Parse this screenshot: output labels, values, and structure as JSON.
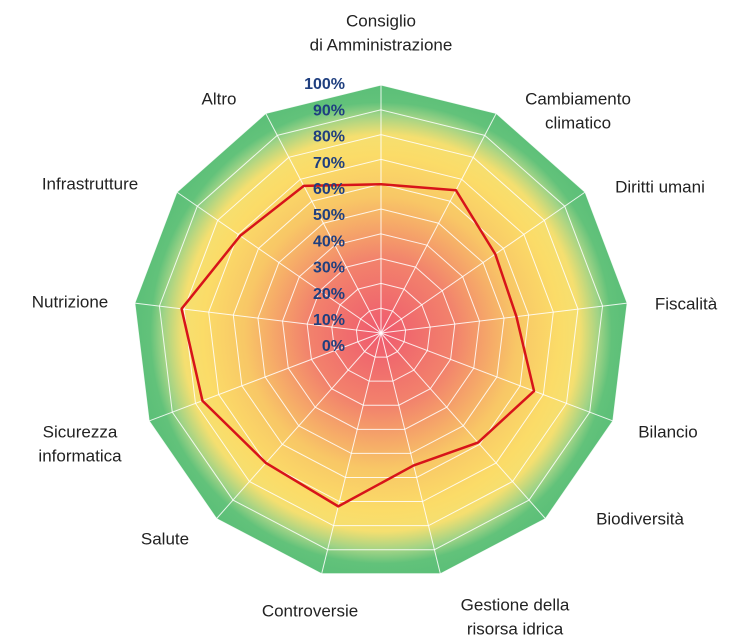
{
  "chart_data": {
    "type": "radar",
    "categories": [
      [
        "Consiglio",
        "di Amministrazione"
      ],
      [
        "Cambiamento",
        "climatico"
      ],
      [
        "Diritti umani"
      ],
      [
        "Fiscalità"
      ],
      [
        "Bilancio"
      ],
      [
        "Biodiversità"
      ],
      [
        "Gestione della",
        "risorsa idrica"
      ],
      [
        "Controversie"
      ],
      [
        "Salute"
      ],
      [
        "Sicurezza",
        "informatica"
      ],
      [
        "Nutrizione"
      ],
      [
        "Infrastrutture"
      ],
      [
        "Altro"
      ]
    ],
    "values": [
      60,
      65,
      56,
      55,
      66,
      59,
      55,
      72,
      70,
      77,
      81,
      69,
      67
    ],
    "color": "#d7141a",
    "rlim": [
      0,
      100
    ],
    "rticks": [
      {
        "value": 0,
        "label": "0%"
      },
      {
        "value": 10,
        "label": "10%"
      },
      {
        "value": 20,
        "label": "20%"
      },
      {
        "value": 30,
        "label": "30%"
      },
      {
        "value": 40,
        "label": "40%"
      },
      {
        "value": 50,
        "label": "50%"
      },
      {
        "value": 60,
        "label": "60%"
      },
      {
        "value": 70,
        "label": "70%"
      },
      {
        "value": 80,
        "label": "80%"
      },
      {
        "value": 90,
        "label": "90%"
      },
      {
        "value": 100,
        "label": "100%"
      }
    ],
    "grid": true
  }
}
